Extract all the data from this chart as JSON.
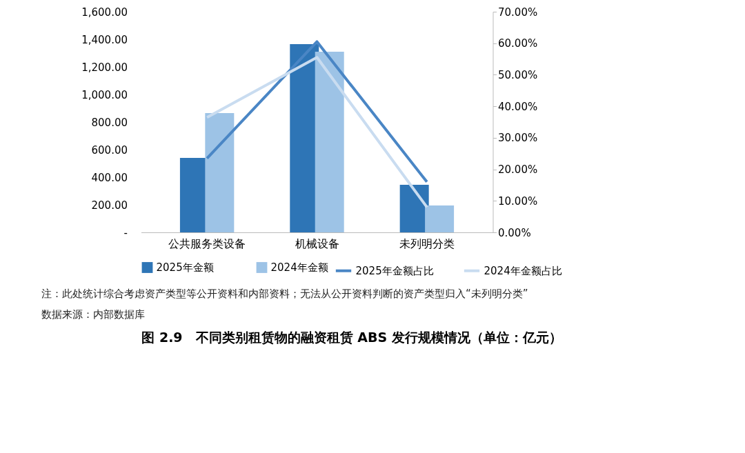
{
  "chart_data": {
    "type": "bar",
    "title": "图 2.9　不同类别租赁物的融资租赁 ABS 发行规模情况（单位：亿元）",
    "categories": [
      "公共服务类设备",
      "机械设备",
      "未列明分类"
    ],
    "series": [
      {
        "name": "2025年金额",
        "color": "#2e75b6",
        "values": [
          540,
          1365,
          345
        ]
      },
      {
        "name": "2024年金额",
        "color": "#9dc3e6",
        "values": [
          865,
          1310,
          195
        ]
      },
      {
        "name": "2025年金额占比",
        "type": "line",
        "axis": "y2",
        "color": "#4a86c5",
        "values": [
          23.5,
          60.5,
          16
        ]
      },
      {
        "name": "2024年金额占比",
        "type": "line",
        "axis": "y2",
        "color": "#c9dcf0",
        "values": [
          36.5,
          55.5,
          8
        ]
      }
    ],
    "ylim": [
      0,
      1600
    ],
    "yticks": [
      {
        "value": 0,
        "label": "-"
      },
      {
        "value": 200,
        "label": "200.00"
      },
      {
        "value": 400,
        "label": "400.00"
      },
      {
        "value": 600,
        "label": "600.00"
      },
      {
        "value": 800,
        "label": "800.00"
      },
      {
        "value": 1000,
        "label": "1,000.00"
      },
      {
        "value": 1200,
        "label": "1,200.00"
      },
      {
        "value": 1400,
        "label": "1,400.00"
      },
      {
        "value": 1600,
        "label": "1,600.00"
      }
    ],
    "y2lim": [
      0,
      70
    ],
    "y2ticks": [
      {
        "value": 0,
        "label": "0.00%"
      },
      {
        "value": 10,
        "label": "10.00%"
      },
      {
        "value": 20,
        "label": "20.00%"
      },
      {
        "value": 30,
        "label": "30.00%"
      },
      {
        "value": 40,
        "label": "40.00%"
      },
      {
        "value": 50,
        "label": "50.00%"
      },
      {
        "value": 60,
        "label": "60.00%"
      },
      {
        "value": 70,
        "label": "70.00%"
      }
    ],
    "grid": false,
    "legend": "bottom",
    "annotations": [
      "注：此处统计综合考虑资产类型等公开资料和内部资料；无法从公开资料判断的资产类型归入“未列明分类”",
      "数据来源：内部数据库"
    ]
  }
}
